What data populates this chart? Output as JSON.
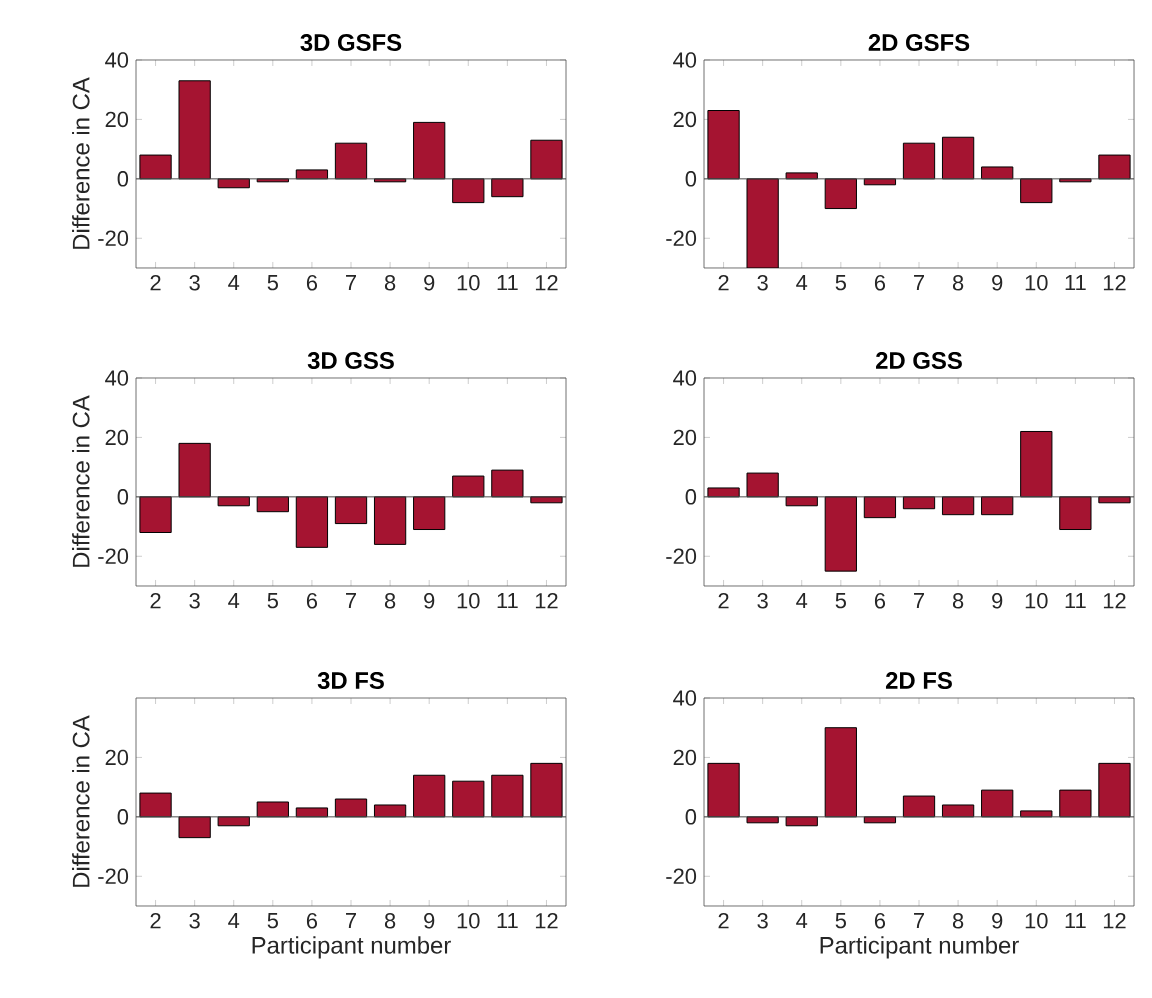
{
  "chart_data": [
    {
      "type": "bar",
      "title": "3D GSFS",
      "ylabel": "Difference in CA",
      "categories": [
        "2",
        "3",
        "4",
        "5",
        "6",
        "7",
        "8",
        "9",
        "10",
        "11",
        "12"
      ],
      "values": [
        8,
        33,
        -3,
        -1,
        3,
        12,
        -1,
        19,
        -8,
        -6,
        13
      ],
      "color": "#a51431",
      "ylim": [
        -30,
        40
      ],
      "yticks": [
        -20,
        0,
        20,
        40
      ]
    },
    {
      "type": "bar",
      "title": "2D GSFS",
      "categories": [
        "2",
        "3",
        "4",
        "5",
        "6",
        "7",
        "8",
        "9",
        "10",
        "11",
        "12"
      ],
      "values": [
        23,
        -30,
        2,
        -10,
        -2,
        12,
        14,
        4,
        -8,
        -1,
        8
      ],
      "color": "#a51431",
      "ylim": [
        -30,
        40
      ],
      "yticks": [
        -20,
        0,
        20,
        40
      ]
    },
    {
      "type": "bar",
      "title": "3D GSS",
      "ylabel": "Difference in CA",
      "categories": [
        "2",
        "3",
        "4",
        "5",
        "6",
        "7",
        "8",
        "9",
        "10",
        "11",
        "12"
      ],
      "values": [
        -12,
        18,
        -3,
        -5,
        -17,
        -9,
        -16,
        -11,
        7,
        9,
        -2
      ],
      "color": "#a51431",
      "ylim": [
        -30,
        40
      ],
      "yticks": [
        -20,
        0,
        20,
        40
      ]
    },
    {
      "type": "bar",
      "title": "2D GSS",
      "categories": [
        "2",
        "3",
        "4",
        "5",
        "6",
        "7",
        "8",
        "9",
        "10",
        "11",
        "12"
      ],
      "values": [
        3,
        8,
        -3,
        -25,
        -7,
        -4,
        -6,
        -6,
        22,
        -11,
        -2
      ],
      "color": "#a51431",
      "ylim": [
        -30,
        40
      ],
      "yticks": [
        -20,
        0,
        20,
        40
      ]
    },
    {
      "type": "bar",
      "title": "3D FS",
      "ylabel": "Difference in CA",
      "xlabel": "Participant number",
      "categories": [
        "2",
        "3",
        "4",
        "5",
        "6",
        "7",
        "8",
        "9",
        "10",
        "11",
        "12"
      ],
      "values": [
        8,
        -7,
        -3,
        5,
        3,
        6,
        4,
        14,
        12,
        14,
        18
      ],
      "color": "#a51431",
      "ylim": [
        -30,
        40
      ],
      "yticks": [
        -20,
        0,
        20
      ]
    },
    {
      "type": "bar",
      "title": "2D FS",
      "xlabel": "Participant number",
      "categories": [
        "2",
        "3",
        "4",
        "5",
        "6",
        "7",
        "8",
        "9",
        "10",
        "11",
        "12"
      ],
      "values": [
        18,
        -2,
        -3,
        30,
        -2,
        7,
        4,
        9,
        2,
        9,
        18
      ],
      "color": "#a51431",
      "ylim": [
        -30,
        40
      ],
      "yticks": [
        -20,
        0,
        20,
        40
      ]
    }
  ]
}
